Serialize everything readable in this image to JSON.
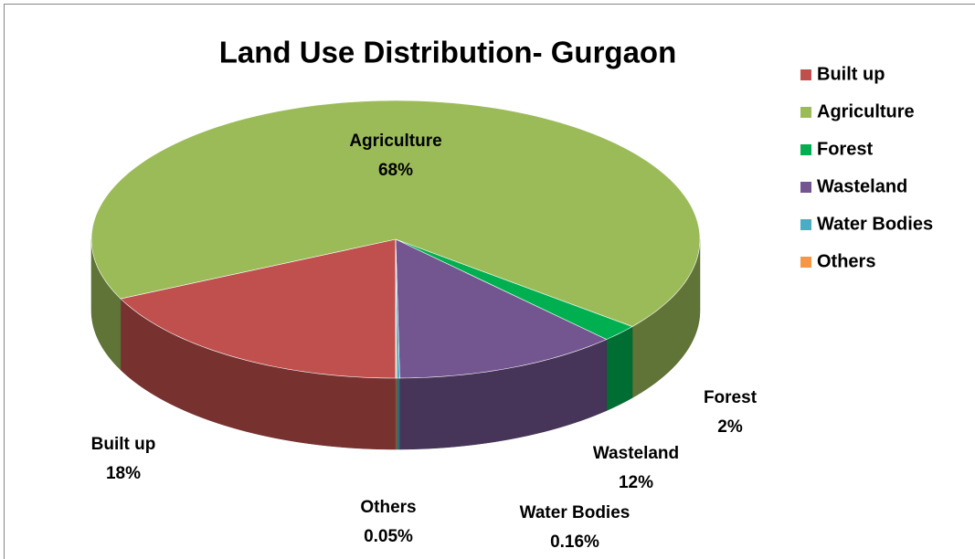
{
  "chart_data": {
    "type": "pie",
    "title": "Land Use Distribution- Gurgaon",
    "categories": [
      "Built up",
      "Agriculture",
      "Forest",
      "Wasteland",
      "Water Bodies",
      "Others"
    ],
    "values": [
      18,
      68,
      2,
      12,
      0.16,
      0.05
    ],
    "value_labels": [
      "18%",
      "68%",
      "2%",
      "12%",
      "0.16%",
      "0.05%"
    ],
    "colors": [
      "#c0504d",
      "#9bbb59",
      "#00b050",
      "#73558f",
      "#4bacc6",
      "#f79646"
    ],
    "legend": "right",
    "start_angle": 180
  }
}
